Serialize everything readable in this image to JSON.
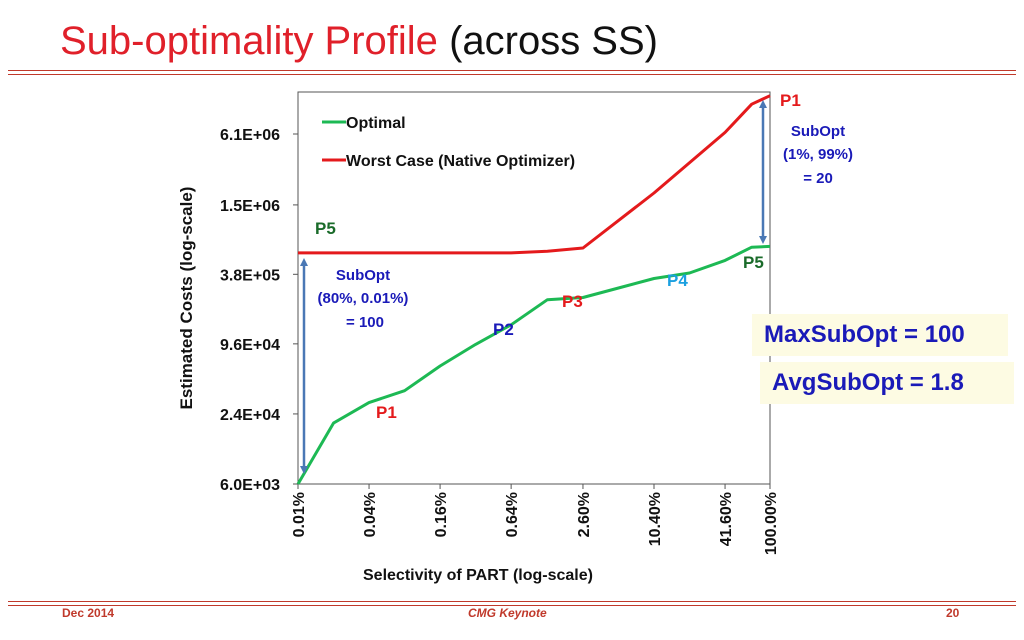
{
  "slide": {
    "title_main": "Sub-optimality Profile",
    "title_sub": "(across SS)",
    "footer_left": "Dec 2014",
    "footer_center": "CMG Keynote",
    "footer_right": "20"
  },
  "colors": {
    "optimal": "#1db954",
    "worst": "#e41a1c",
    "arrow": "#4a78b5",
    "accent_blue": "#1a1ab8"
  },
  "callouts": {
    "max": "MaxSubOpt = 100",
    "avg": "AvgSubOpt = 1.8"
  },
  "chart_data": {
    "type": "line",
    "xlabel": "Selectivity of PART (log-scale)",
    "ylabel": "Estimated Costs (log-scale)",
    "x_scale": "log",
    "y_scale": "log",
    "x_ticks": [
      "0.01%",
      "0.04%",
      "0.16%",
      "0.64%",
      "2.60%",
      "10.40%",
      "41.60%",
      "100.00%"
    ],
    "y_ticks": [
      "6.0E+03",
      "2.4E+04",
      "9.6E+04",
      "3.8E+05",
      "1.5E+06",
      "6.1E+06"
    ],
    "x_tick_values": [
      0.01,
      0.04,
      0.16,
      0.64,
      2.6,
      10.4,
      41.6,
      100
    ],
    "y_tick_values": [
      6000,
      24000,
      96000,
      380000,
      1500000,
      6100000
    ],
    "ylim": [
      6000,
      14000000
    ],
    "legend_position": "top-left",
    "series": [
      {
        "name": "Optimal",
        "color": "#1db954",
        "x": [
          0.01,
          0.02,
          0.04,
          0.08,
          0.16,
          0.32,
          0.64,
          1.3,
          2.6,
          5.2,
          10.4,
          20.8,
          41.6,
          70,
          100
        ],
        "y": [
          6000,
          20000,
          30000,
          38000,
          62000,
          95000,
          140000,
          230000,
          240000,
          290000,
          350000,
          390000,
          500000,
          650000,
          660000
        ]
      },
      {
        "name": "Worst Case (Native Optimizer)",
        "color": "#e41a1c",
        "x": [
          0.01,
          0.04,
          0.16,
          0.64,
          1.3,
          2.6,
          10.4,
          41.6,
          70,
          100
        ],
        "y": [
          580000,
          580000,
          580000,
          580000,
          600000,
          640000,
          1900000,
          6300000,
          11000000,
          13000000
        ]
      }
    ],
    "annotations": [
      {
        "text": "P5",
        "color": "#1a6b2a"
      },
      {
        "text": "SubOpt"
      },
      {
        "text": "(80%, 0.01%)"
      },
      {
        "text": "= 100"
      },
      {
        "text": "P1",
        "color": "#e41a1c"
      },
      {
        "text": "P2",
        "color": "#1a1ab8"
      },
      {
        "text": "P3",
        "color": "#e41a1c"
      },
      {
        "text": "P4",
        "color": "#1ba0e0"
      },
      {
        "text": "P5",
        "color": "#1a6b2a"
      },
      {
        "text": "P1",
        "color": "#e41a1c"
      },
      {
        "text": "SubOpt"
      },
      {
        "text": "(1%, 99%)"
      },
      {
        "text": "= 20"
      }
    ]
  }
}
